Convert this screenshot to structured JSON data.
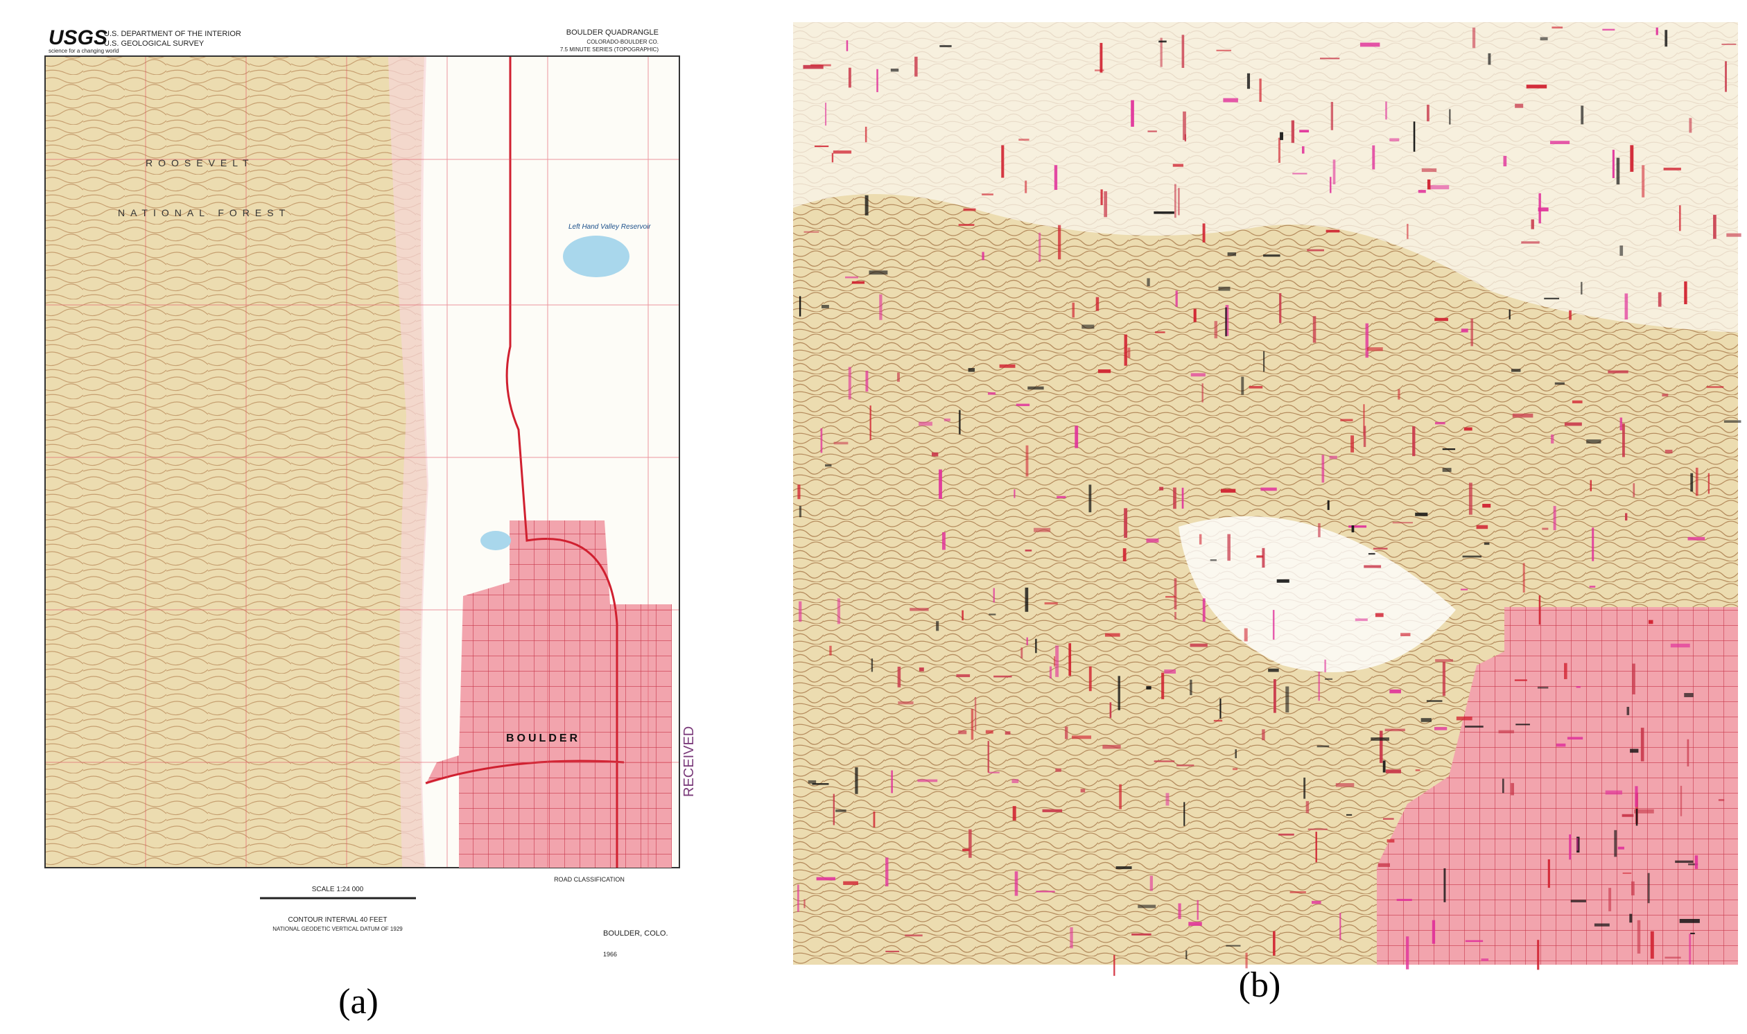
{
  "panels": [
    {
      "label": "(a)",
      "logo": "USGS",
      "logo_tagline": "science for a changing world",
      "agency": [
        "U.S. DEPARTMENT OF THE INTERIOR",
        "U.S. GEOLOGICAL SURVEY"
      ],
      "quadrangle": [
        "BOULDER QUADRANGLE",
        "COLORADO-BOULDER CO.",
        "7.5 MINUTE SERIES (TOPOGRAPHIC)"
      ],
      "map_labels": [
        "ROOSEVELT",
        "NATIONAL FOREST",
        "Left Hand Valley Reservoir",
        "BOULDER",
        "RECEIVED"
      ],
      "footer": [
        "SCALE 1:24 000",
        "CONTOUR INTERVAL 40 FEET",
        "NATIONAL GEODETIC VERTICAL DATUM OF 1929",
        "ROAD CLASSIFICATION",
        "BOULDER, COLO.",
        "1966"
      ]
    },
    {
      "label": "(b)"
    }
  ]
}
